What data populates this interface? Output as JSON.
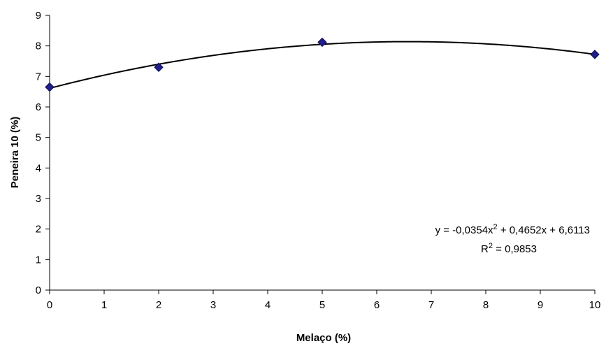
{
  "chart_data": {
    "type": "scatter",
    "xlabel": "Melaço (%)",
    "ylabel": "Peneira 10 (%)",
    "xlim": [
      0,
      10
    ],
    "ylim": [
      0,
      9
    ],
    "x_ticks": [
      "0",
      "1",
      "2",
      "3",
      "4",
      "5",
      "6",
      "7",
      "8",
      "9",
      "10"
    ],
    "y_ticks": [
      "0",
      "1",
      "2",
      "3",
      "4",
      "5",
      "6",
      "7",
      "8",
      "9"
    ],
    "grid": false,
    "legend": "none",
    "series": [
      {
        "x": [
          0,
          2,
          5,
          10
        ],
        "y": [
          6.65,
          7.3,
          8.12,
          7.72
        ],
        "marker": "diamond",
        "color": "#1f1f8c"
      }
    ],
    "trendline": {
      "type": "polynomial",
      "order": 2,
      "coefficients": {
        "a": -0.0354,
        "b": 0.4652,
        "c": 6.6113
      },
      "color": "#000000"
    },
    "annotation": {
      "equation_prefix": "y = -0,0354x",
      "equation_exp": "2",
      "equation_suffix": " + 0,4652x + 6,6113",
      "r2_prefix": "R",
      "r2_exp": "2",
      "r2_suffix": " = 0,9853"
    }
  }
}
